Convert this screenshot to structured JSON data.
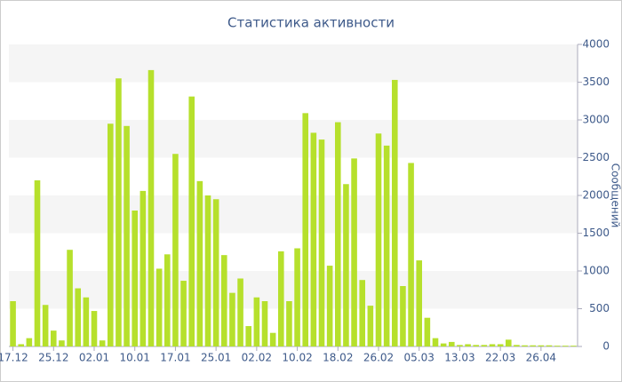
{
  "chart_data": {
    "type": "bar",
    "title": "Статистика активности",
    "y_label": "Сообщений",
    "categories": [
      "17.12",
      null,
      null,
      null,
      null,
      "25.12",
      null,
      null,
      null,
      null,
      "02.01",
      null,
      null,
      null,
      null,
      "10.01",
      null,
      null,
      null,
      null,
      "17.01",
      null,
      null,
      null,
      null,
      "25.01",
      null,
      null,
      null,
      null,
      "02.02",
      null,
      null,
      null,
      null,
      "10.02",
      null,
      null,
      null,
      null,
      "18.02",
      null,
      null,
      null,
      null,
      "26.02",
      null,
      null,
      null,
      null,
      "05.03",
      null,
      null,
      null,
      null,
      "13.03",
      null,
      null,
      null,
      null,
      "22.03",
      null,
      null,
      null,
      null,
      "26.04",
      null,
      null,
      null,
      null
    ],
    "values": [
      600,
      30,
      110,
      2200,
      550,
      210,
      80,
      1280,
      770,
      650,
      470,
      80,
      2950,
      3550,
      2920,
      1800,
      2060,
      3660,
      1030,
      1220,
      2550,
      870,
      3310,
      2190,
      2000,
      1950,
      1210,
      710,
      900,
      270,
      650,
      600,
      180,
      1260,
      600,
      1300,
      3090,
      2830,
      2740,
      1070,
      2970,
      2150,
      2490,
      880,
      540,
      2820,
      2660,
      3530,
      800,
      2430,
      1140,
      380,
      110,
      40,
      60,
      20,
      30,
      20,
      20,
      30,
      30,
      90,
      20,
      15,
      15,
      15,
      15,
      10,
      10,
      10
    ],
    "color": "#b6e02c",
    "ylim": [
      0,
      4000
    ],
    "yticks": [
      0,
      500,
      1000,
      1500,
      2000,
      2500,
      3000,
      3500,
      4000
    ],
    "grid": true
  }
}
